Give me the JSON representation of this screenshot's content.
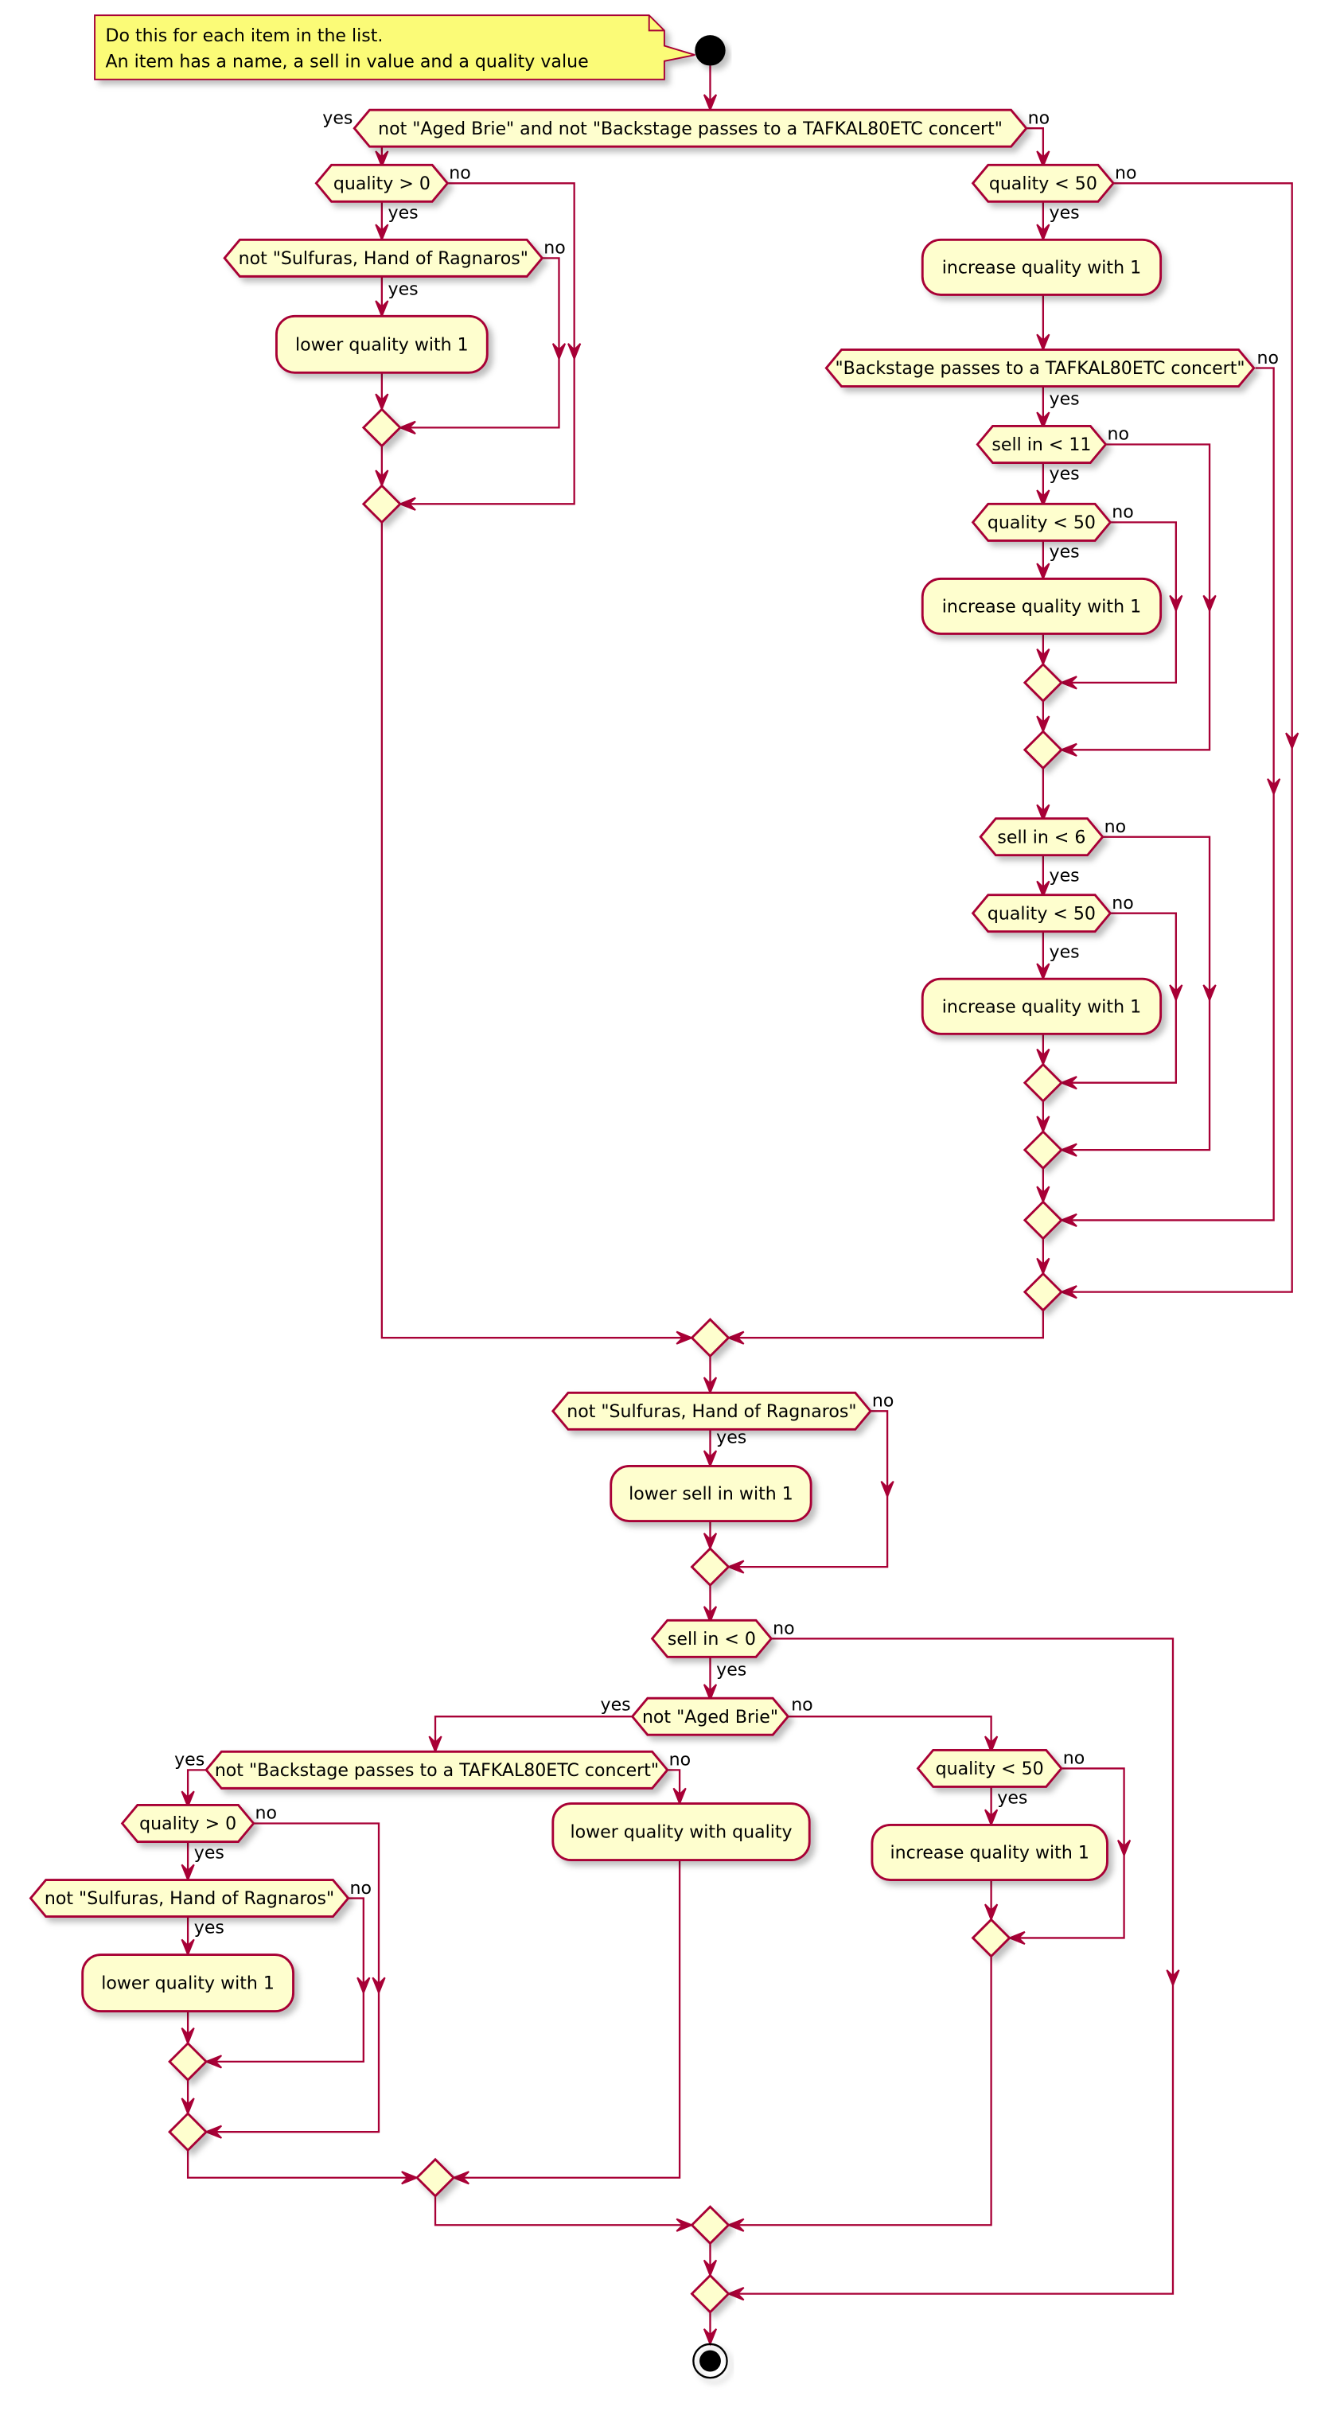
{
  "note": {
    "lines": [
      "Do this for each item in the list.",
      "An item has a name, a sell in value and a quality value"
    ]
  },
  "labels": {
    "yes": "yes",
    "no": "no"
  },
  "decisions": {
    "d1": "not \"Aged Brie\" and not \"Backstage passes to a TAFKAL80ETC concert\"",
    "d2": "quality > 0",
    "d3": "not \"Sulfuras, Hand of Ragnaros\"",
    "d4": "quality < 50",
    "d5": "\"Backstage passes to a TAFKAL80ETC concert\"",
    "d6": "sell in < 11",
    "d7": "quality < 50",
    "d8": "sell in < 6",
    "d9": "quality < 50",
    "d10": "not \"Sulfuras, Hand of Ragnaros\"",
    "d11": "sell in < 0",
    "d12": "not \"Aged Brie\"",
    "d13": "not \"Backstage passes to a TAFKAL80ETC concert\"",
    "d14": "quality > 0",
    "d15": "not \"Sulfuras, Hand of Ragnaros\"",
    "d16": "quality < 50"
  },
  "actions": {
    "a1": "lower quality with 1",
    "a2": "increase quality with 1",
    "a3": "increase quality with 1",
    "a4": "increase quality with 1",
    "a5": "lower sell in with 1",
    "a6": "lower quality with 1",
    "a7": "lower quality with quality",
    "a8": "increase quality with 1"
  },
  "colors": {
    "stroke": "#A80036",
    "node_fill": "#FEFECE",
    "note_fill": "#FBFB77"
  }
}
